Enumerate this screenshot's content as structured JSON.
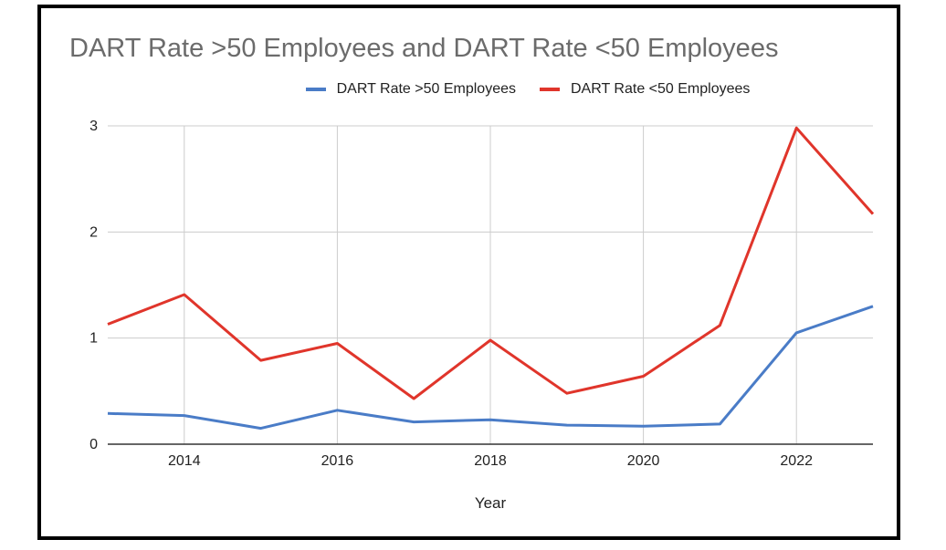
{
  "chart_data": {
    "type": "line",
    "title": "DART Rate >50 Employees and DART Rate <50 Employees",
    "xlabel": "Year",
    "ylabel": "",
    "x": [
      2013,
      2014,
      2015,
      2016,
      2017,
      2018,
      2019,
      2020,
      2021,
      2022,
      2023
    ],
    "xlim": [
      2013,
      2023
    ],
    "ylim": [
      0,
      3
    ],
    "xticks": [
      "2014",
      "2016",
      "2018",
      "2020",
      "2022"
    ],
    "yticks": [
      "0",
      "1",
      "2",
      "3"
    ],
    "grid": true,
    "legend_position": "top",
    "series": [
      {
        "name": "DART Rate >50 Employees",
        "color": "#4a7cc7",
        "values": [
          0.29,
          0.27,
          0.15,
          0.32,
          0.21,
          0.23,
          0.18,
          0.17,
          0.19,
          1.05,
          1.3
        ]
      },
      {
        "name": "DART Rate <50 Employees",
        "color": "#e0352b",
        "values": [
          1.13,
          1.41,
          0.79,
          0.95,
          0.43,
          0.98,
          0.48,
          0.64,
          1.12,
          2.98,
          2.17
        ]
      }
    ]
  }
}
